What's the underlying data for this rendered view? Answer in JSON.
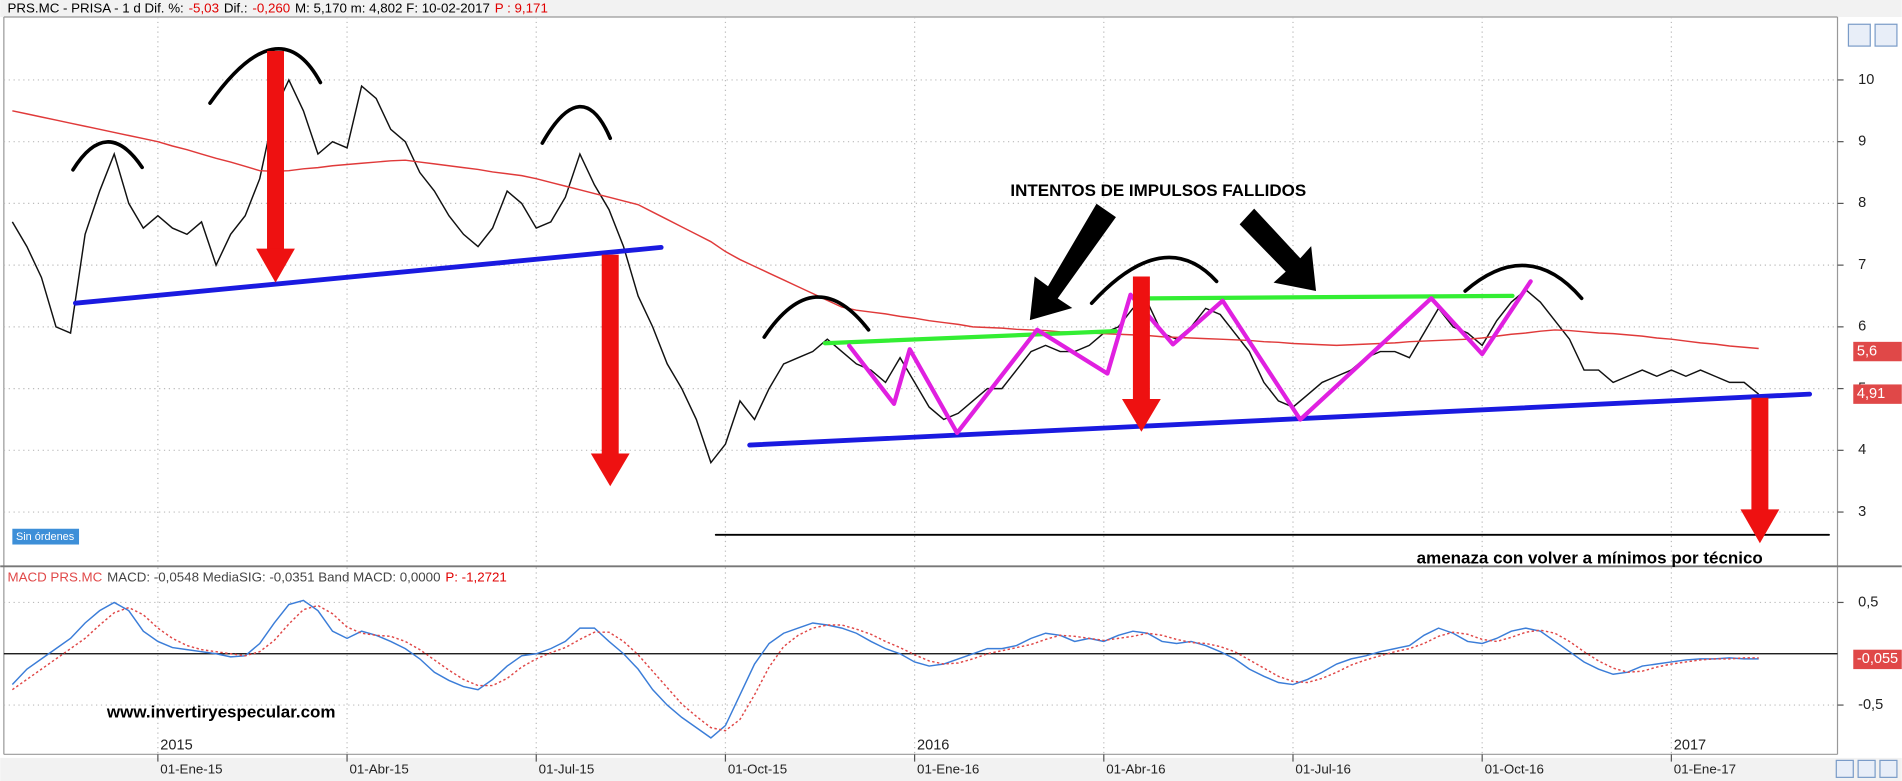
{
  "chart_data": [
    {
      "type": "line",
      "header": [
        {
          "text": "PRS.MC - PRISA -  1 d Dif. %:",
          "color": "#000000"
        },
        {
          "text": "-5,03",
          "color": "#e00000"
        },
        {
          "text": "Dif.:",
          "color": "#000000"
        },
        {
          "text": "-0,260",
          "color": "#e00000"
        },
        {
          "text": "M: 5,170  m: 4,802  F: 10-02-2017",
          "color": "#000000"
        },
        {
          "text": "P : 9,171",
          "color": "#e00000"
        }
      ],
      "annotations": [
        "INTENTOS DE IMPULSOS FALLIDOS",
        "amenaza con volver a mínimos por técnico",
        "Sin órdenes"
      ],
      "series": [
        {
          "name": "PRS.MC",
          "color": "#111111",
          "values": [
            7.7,
            7.3,
            6.8,
            6.0,
            5.9,
            7.5,
            8.2,
            8.8,
            8.0,
            7.6,
            7.8,
            7.6,
            7.5,
            7.7,
            7.0,
            7.5,
            7.8,
            8.4,
            9.5,
            10.0,
            9.5,
            8.8,
            9.0,
            8.9,
            9.9,
            9.7,
            9.2,
            9.0,
            8.5,
            8.2,
            7.8,
            7.5,
            7.3,
            7.6,
            8.2,
            8.0,
            7.6,
            7.7,
            8.1,
            8.8,
            8.3,
            7.9,
            7.3,
            6.5,
            6.0,
            5.4,
            5.0,
            4.5,
            3.8,
            4.1,
            4.8,
            4.5,
            5.0,
            5.4,
            5.5,
            5.6,
            5.8,
            5.6,
            5.4,
            5.3,
            5.1,
            5.5,
            5.1,
            4.7,
            4.5,
            4.6,
            4.8,
            5.0,
            5.0,
            5.3,
            5.6,
            5.7,
            5.6,
            5.6,
            5.7,
            5.9,
            6.0,
            6.3,
            6.4,
            5.9,
            5.8,
            6.0,
            6.3,
            6.2,
            5.9,
            5.6,
            5.1,
            4.8,
            4.7,
            4.9,
            5.1,
            5.2,
            5.3,
            5.5,
            5.6,
            5.6,
            5.5,
            5.9,
            6.3,
            6.0,
            5.9,
            5.7,
            6.1,
            6.4,
            6.6,
            6.4,
            6.1,
            5.8,
            5.3,
            5.3,
            5.1,
            5.2,
            5.3,
            5.2,
            5.3,
            5.2,
            5.3,
            5.2,
            5.1,
            5.1,
            4.91
          ]
        },
        {
          "name": "MA",
          "color": "#e03a3a",
          "values": [
            9.5,
            9.45,
            9.4,
            9.35,
            9.3,
            9.25,
            9.2,
            9.15,
            9.1,
            9.05,
            9.0,
            8.93,
            8.87,
            8.8,
            8.73,
            8.67,
            8.6,
            8.53,
            8.52,
            8.53,
            8.56,
            8.58,
            8.61,
            8.63,
            8.65,
            8.67,
            8.69,
            8.7,
            8.67,
            8.64,
            8.61,
            8.58,
            8.55,
            8.51,
            8.48,
            8.45,
            8.4,
            8.34,
            8.28,
            8.22,
            8.16,
            8.1,
            8.04,
            7.98,
            7.86,
            7.74,
            7.62,
            7.5,
            7.38,
            7.22,
            7.09,
            6.98,
            6.87,
            6.76,
            6.65,
            6.54,
            6.43,
            6.32,
            6.27,
            6.24,
            6.21,
            6.17,
            6.14,
            6.1,
            6.07,
            6.04,
            6.0,
            5.99,
            5.98,
            5.96,
            5.95,
            5.94,
            5.92,
            5.91,
            5.9,
            5.89,
            5.88,
            5.87,
            5.86,
            5.84,
            5.83,
            5.82,
            5.81,
            5.8,
            5.79,
            5.78,
            5.76,
            5.75,
            5.73,
            5.72,
            5.71,
            5.7,
            5.71,
            5.72,
            5.73,
            5.74,
            5.76,
            5.77,
            5.78,
            5.79,
            5.8,
            5.82,
            5.85,
            5.88,
            5.9,
            5.93,
            5.95,
            5.94,
            5.92,
            5.9,
            5.89,
            5.87,
            5.85,
            5.82,
            5.8,
            5.77,
            5.74,
            5.72,
            5.69,
            5.67,
            5.65
          ]
        }
      ],
      "ylim": [
        2.14,
        11.02
      ],
      "yticks": [
        3,
        4,
        5,
        6,
        7,
        8,
        9,
        10
      ],
      "grid": true,
      "tags": [
        {
          "value": 5.6,
          "label": "5,6",
          "color": "#e04848"
        },
        {
          "value": 4.91,
          "label": "4,91",
          "color": "#e04848"
        }
      ]
    },
    {
      "type": "line",
      "header": [
        {
          "text": "MACD PRS.MC",
          "color": "#e04848"
        },
        {
          "text": "MACD: -0,0548  MediaSIG: -0,0351  Band MACD: 0,0000",
          "color": "#444444"
        },
        {
          "text": "P: -1,2721",
          "color": "#e00000"
        }
      ],
      "annotations": [
        "www.invertiryespecular.com"
      ],
      "categories": [
        null,
        null,
        null,
        null,
        null,
        null,
        null,
        null,
        null,
        null,
        "01-Ene-15",
        null,
        null,
        null,
        null,
        null,
        null,
        null,
        null,
        null,
        null,
        null,
        null,
        "01-Abr-15",
        null,
        null,
        null,
        null,
        null,
        null,
        null,
        null,
        null,
        null,
        null,
        null,
        "01-Jul-15",
        null,
        null,
        null,
        null,
        null,
        null,
        null,
        null,
        null,
        null,
        null,
        null,
        "01-Oct-15",
        null,
        null,
        null,
        null,
        null,
        null,
        null,
        null,
        null,
        null,
        null,
        null,
        "01-Ene-16",
        null,
        null,
        null,
        null,
        null,
        null,
        null,
        null,
        null,
        null,
        null,
        null,
        "01-Abr-16",
        null,
        null,
        null,
        null,
        null,
        null,
        null,
        null,
        null,
        null,
        null,
        null,
        "01-Jul-16",
        null,
        null,
        null,
        null,
        null,
        null,
        null,
        null,
        null,
        null,
        null,
        null,
        "01-Oct-16",
        null,
        null,
        null,
        null,
        null,
        null,
        null,
        null,
        null,
        null,
        null,
        null,
        "01-Ene-17",
        null,
        null,
        null,
        null,
        null,
        null
      ],
      "year_labels": [
        null,
        null,
        null,
        null,
        null,
        null,
        null,
        null,
        null,
        null,
        "2015",
        null,
        null,
        null,
        null,
        null,
        null,
        null,
        null,
        null,
        null,
        null,
        null,
        null,
        null,
        null,
        null,
        null,
        null,
        null,
        null,
        null,
        null,
        null,
        null,
        null,
        null,
        null,
        null,
        null,
        null,
        null,
        null,
        null,
        null,
        null,
        null,
        null,
        null,
        null,
        null,
        null,
        null,
        null,
        null,
        null,
        null,
        null,
        null,
        null,
        null,
        null,
        "2016",
        null,
        null,
        null,
        null,
        null,
        null,
        null,
        null,
        null,
        null,
        null,
        null,
        null,
        null,
        null,
        null,
        null,
        null,
        null,
        null,
        null,
        null,
        null,
        null,
        null,
        null,
        null,
        null,
        null,
        null,
        null,
        null,
        null,
        null,
        null,
        null,
        null,
        null,
        null,
        null,
        null,
        null,
        null,
        null,
        null,
        null,
        null,
        null,
        null,
        null,
        null,
        "2017",
        null,
        null,
        null,
        null,
        null,
        null
      ],
      "series": [
        {
          "name": "MACD",
          "color": "#3b7dd8",
          "style": "solid",
          "values": [
            -0.3,
            -0.15,
            -0.05,
            0.05,
            0.15,
            0.3,
            0.42,
            0.5,
            0.42,
            0.22,
            0.12,
            0.06,
            0.04,
            0.02,
            0.0,
            -0.03,
            -0.02,
            0.1,
            0.3,
            0.48,
            0.52,
            0.42,
            0.22,
            0.15,
            0.22,
            0.18,
            0.12,
            0.05,
            -0.05,
            -0.18,
            -0.26,
            -0.32,
            -0.35,
            -0.25,
            -0.12,
            -0.02,
            0.0,
            0.05,
            0.12,
            0.25,
            0.25,
            0.12,
            0.0,
            -0.15,
            -0.35,
            -0.5,
            -0.62,
            -0.72,
            -0.82,
            -0.7,
            -0.4,
            -0.1,
            0.1,
            0.2,
            0.25,
            0.3,
            0.28,
            0.25,
            0.2,
            0.12,
            0.05,
            0.0,
            -0.08,
            -0.12,
            -0.1,
            -0.05,
            0.0,
            0.05,
            0.05,
            0.08,
            0.15,
            0.2,
            0.18,
            0.12,
            0.15,
            0.12,
            0.18,
            0.22,
            0.2,
            0.12,
            0.1,
            0.12,
            0.08,
            0.02,
            -0.05,
            -0.15,
            -0.22,
            -0.28,
            -0.3,
            -0.25,
            -0.18,
            -0.1,
            -0.05,
            -0.02,
            0.02,
            0.05,
            0.08,
            0.18,
            0.25,
            0.2,
            0.12,
            0.1,
            0.15,
            0.22,
            0.25,
            0.22,
            0.12,
            0.02,
            -0.08,
            -0.15,
            -0.2,
            -0.18,
            -0.12,
            -0.1,
            -0.08,
            -0.06,
            -0.05,
            -0.05,
            -0.04,
            -0.05,
            -0.05
          ]
        },
        {
          "name": "MediaSIG",
          "color": "#e04848",
          "style": "dotted",
          "values": [
            -0.35,
            -0.25,
            -0.15,
            -0.05,
            0.05,
            0.15,
            0.28,
            0.4,
            0.45,
            0.38,
            0.25,
            0.15,
            0.08,
            0.04,
            0.02,
            0.0,
            -0.02,
            0.02,
            0.13,
            0.29,
            0.43,
            0.47,
            0.39,
            0.26,
            0.2,
            0.18,
            0.17,
            0.12,
            0.04,
            -0.06,
            -0.16,
            -0.25,
            -0.31,
            -0.31,
            -0.24,
            -0.13,
            -0.05,
            0.01,
            0.06,
            0.14,
            0.21,
            0.21,
            0.12,
            -0.01,
            -0.17,
            -0.33,
            -0.49,
            -0.61,
            -0.72,
            -0.75,
            -0.64,
            -0.4,
            -0.13,
            0.07,
            0.18,
            0.25,
            0.28,
            0.28,
            0.24,
            0.19,
            0.12,
            0.06,
            -0.01,
            -0.07,
            -0.1,
            -0.09,
            -0.05,
            0.0,
            0.03,
            0.06,
            0.09,
            0.14,
            0.18,
            0.17,
            0.15,
            0.13,
            0.15,
            0.17,
            0.2,
            0.18,
            0.14,
            0.11,
            0.1,
            0.07,
            0.02,
            -0.06,
            -0.14,
            -0.22,
            -0.27,
            -0.28,
            -0.24,
            -0.18,
            -0.11,
            -0.06,
            -0.02,
            0.02,
            0.05,
            0.1,
            0.17,
            0.21,
            0.19,
            0.14,
            0.12,
            0.16,
            0.21,
            0.23,
            0.2,
            0.12,
            0.02,
            -0.07,
            -0.14,
            -0.18,
            -0.17,
            -0.13,
            -0.1,
            -0.08,
            -0.06,
            -0.05,
            -0.05,
            -0.04,
            -0.04
          ]
        }
      ],
      "ylim": [
        -0.98,
        0.84
      ],
      "yticks": [
        {
          "value": 0.5,
          "label": "0,5"
        },
        {
          "value": -0.5,
          "label": "-0,5"
        }
      ],
      "grid": true,
      "zero_line": true,
      "tags": [
        {
          "value": -0.055,
          "label": "-0,055",
          "color": "#e04848"
        }
      ]
    }
  ]
}
